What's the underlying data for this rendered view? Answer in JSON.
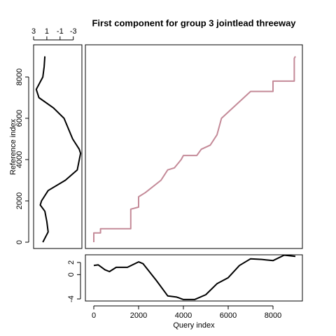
{
  "chart_data": [
    {
      "type": "line",
      "title": "First component for group 3 jointlead threeway",
      "color": "#c48a98",
      "xlim": [
        -375,
        9312
      ],
      "ylim": [
        -305,
        9559
      ],
      "x": [
        0,
        0,
        300,
        300,
        1650,
        1650,
        2000,
        2000,
        2300,
        3000,
        3300,
        3600,
        3900,
        4000,
        4600,
        4800,
        5200,
        5500,
        5700,
        6000,
        6500,
        7000,
        8000,
        8000,
        8950,
        8950,
        9000
      ],
      "values": [
        0,
        450,
        450,
        650,
        650,
        1600,
        1700,
        2200,
        2400,
        3000,
        3500,
        3600,
        4000,
        4200,
        4200,
        4500,
        4700,
        5200,
        6000,
        6300,
        6800,
        7300,
        7300,
        7800,
        7800,
        8900,
        9000
      ]
    },
    {
      "type": "line",
      "orientation": "vertical",
      "y_label": "Reference index",
      "color": "#000000",
      "xlim": [
        3.0,
        -4.3
      ],
      "xticks": [
        3,
        1,
        -1,
        -3
      ],
      "ylim": [
        -305,
        9559
      ],
      "yticks": [
        0,
        2000,
        4000,
        6000,
        8000
      ],
      "x": [
        1.3,
        1.4,
        1.6,
        2.6,
        2.2,
        0.0,
        -1.6,
        -2.9,
        -3.9,
        -4.1,
        -3.6,
        -1.8,
        0.8,
        1.8,
        2.0,
        1.3,
        1.0,
        0.8,
        1.6
      ],
      "values": [
        9000,
        8500,
        8000,
        7400,
        7000,
        6500,
        6000,
        5000,
        4500,
        4300,
        3500,
        3000,
        2500,
        2000,
        1800,
        1500,
        1000,
        500,
        0
      ]
    },
    {
      "type": "line",
      "x_label": "Query index",
      "color": "#000000",
      "xlim": [
        -375,
        9312
      ],
      "xticks": [
        0,
        2000,
        4000,
        6000,
        8000
      ],
      "ylim": [
        -4.34,
        3.26
      ],
      "yticks": [
        2,
        0,
        -4
      ],
      "x": [
        0,
        200,
        500,
        700,
        1000,
        1500,
        2000,
        2200,
        2800,
        3300,
        3700,
        4000,
        4500,
        5000,
        5500,
        6000,
        6500,
        7000,
        7500,
        8000,
        8500,
        9000
      ],
      "values": [
        1.5,
        1.6,
        0.8,
        0.5,
        1.2,
        1.2,
        2.1,
        1.8,
        -1.0,
        -3.5,
        -3.7,
        -4.1,
        -4.1,
        -3.3,
        -1.5,
        -0.5,
        1.5,
        2.6,
        2.5,
        2.3,
        3.2,
        3.0
      ]
    }
  ]
}
